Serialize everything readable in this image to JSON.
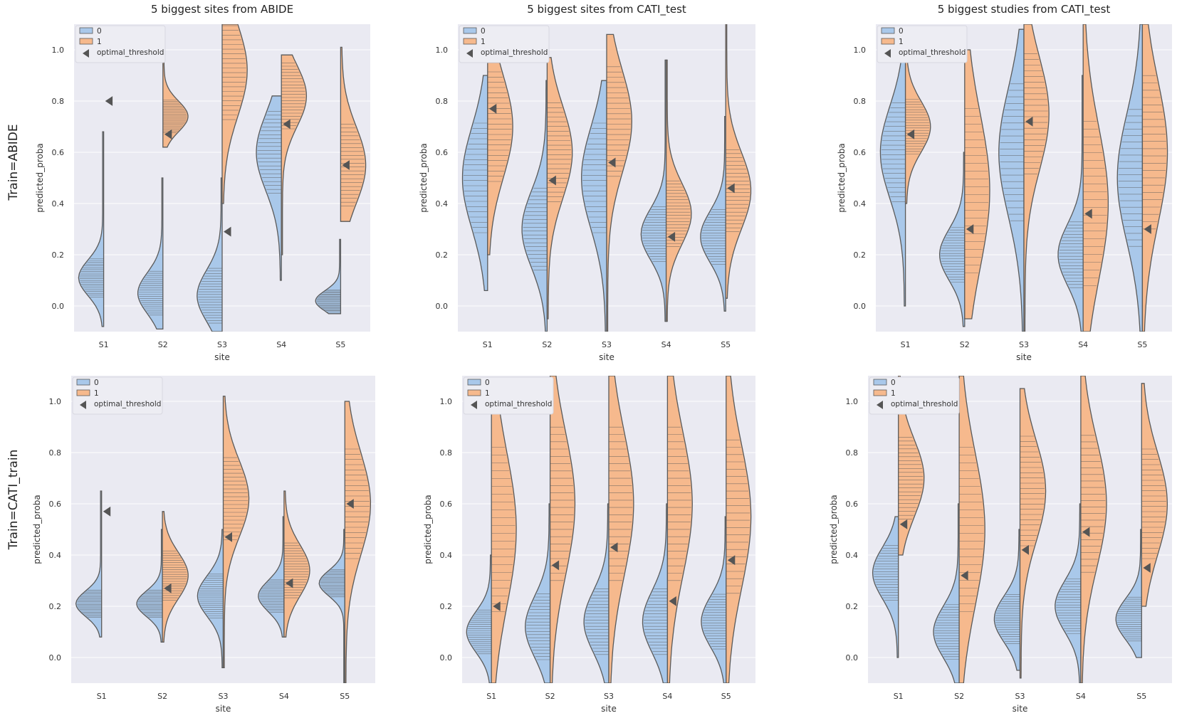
{
  "figure": {
    "row_labels": [
      "Train=ABIDE",
      "Train=CATI_train"
    ],
    "colors": {
      "class0": "#a9c8ea",
      "class1": "#f6b98d",
      "outline": "#5a5a5a",
      "panel_bg": "#eaeaf2",
      "threshold": "#555555"
    }
  },
  "chart_data": [
    {
      "type": "violin",
      "title": "5 biggest sites from ABIDE",
      "xlabel": "site",
      "ylabel": "predicted_proba",
      "categories": [
        "S1",
        "S2",
        "S3",
        "S4",
        "S5"
      ],
      "ylim": [
        -0.1,
        1.1
      ],
      "yticks": [
        "0.0",
        "0.2",
        "0.4",
        "0.6",
        "0.8",
        "1.0"
      ],
      "legend": {
        "placement": "top-left",
        "entries": [
          "0",
          "1",
          "optimal_threshold"
        ]
      },
      "series": [
        {
          "name": "0",
          "median": [
            0.11,
            0.05,
            0.04,
            0.6,
            0.02
          ],
          "range": [
            [
              -0.08,
              0.68
            ],
            [
              -0.09,
              0.5
            ],
            [
              -0.1,
              0.5
            ],
            [
              0.1,
              0.82
            ],
            [
              -0.03,
              0.26
            ]
          ],
          "spread": [
            0.07,
            0.08,
            0.1,
            0.15,
            0.04
          ]
        },
        {
          "name": "1",
          "median": [
            null,
            0.74,
            0.92,
            0.82,
            0.55
          ],
          "range": [
            null,
            [
              0.62,
              0.97
            ],
            [
              0.4,
              1.1
            ],
            [
              0.2,
              0.98
            ],
            [
              0.33,
              1.01
            ]
          ],
          "spread": [
            null,
            0.06,
            0.18,
            0.12,
            0.15
          ]
        }
      ],
      "optimal_threshold": [
        0.8,
        0.67,
        0.29,
        0.71,
        0.55
      ]
    },
    {
      "type": "violin",
      "title": "5 biggest sites from CATI_test",
      "xlabel": "site",
      "ylabel": "predicted_proba",
      "categories": [
        "S1",
        "S2",
        "S3",
        "S4",
        "S5"
      ],
      "ylim": [
        -0.1,
        1.1
      ],
      "yticks": [
        "0.0",
        "0.2",
        "0.4",
        "0.6",
        "0.8",
        "1.0"
      ],
      "legend": {
        "placement": "top-left",
        "entries": [
          "0",
          "1",
          "optimal_threshold"
        ]
      },
      "series": [
        {
          "name": "0",
          "median": [
            0.5,
            0.3,
            0.5,
            0.28,
            0.27
          ],
          "range": [
            [
              0.06,
              0.9
            ],
            [
              -0.1,
              0.88
            ],
            [
              -0.1,
              0.88
            ],
            [
              -0.06,
              0.96
            ],
            [
              -0.02,
              0.74
            ]
          ],
          "spread": [
            0.2,
            0.15,
            0.2,
            0.1,
            0.1
          ]
        },
        {
          "name": "1",
          "median": [
            0.7,
            0.6,
            0.72,
            0.36,
            0.45
          ],
          "range": [
            [
              0.2,
              0.95
            ],
            [
              -0.05,
              0.97
            ],
            [
              -0.1,
              1.06
            ],
            [
              -0.06,
              0.96
            ],
            [
              0.03,
              1.12
            ]
          ],
          "spread": [
            0.2,
            0.18,
            0.2,
            0.12,
            0.15
          ]
        }
      ],
      "optimal_threshold": [
        0.77,
        0.49,
        0.56,
        0.27,
        0.46
      ]
    },
    {
      "type": "violin",
      "title": "5 biggest studies from CATI_test",
      "xlabel": "site",
      "ylabel": "predicted_proba",
      "categories": [
        "S1",
        "S2",
        "S3",
        "S4",
        "S5"
      ],
      "ylim": [
        -0.1,
        1.1
      ],
      "yticks": [
        "0.0",
        "0.2",
        "0.4",
        "0.6",
        "0.8",
        "1.0"
      ],
      "legend": {
        "placement": "top-left",
        "entries": [
          "0",
          "1",
          "optimal_threshold"
        ]
      },
      "series": [
        {
          "name": "0",
          "median": [
            0.6,
            0.2,
            0.6,
            0.2,
            0.5
          ],
          "range": [
            [
              0.0,
              1.0
            ],
            [
              -0.08,
              0.6
            ],
            [
              -0.1,
              1.08
            ],
            [
              -0.1,
              0.9
            ],
            [
              -0.1,
              1.1
            ]
          ],
          "spread": [
            0.18,
            0.1,
            0.25,
            0.12,
            0.25
          ]
        },
        {
          "name": "1",
          "median": [
            0.7,
            0.45,
            0.75,
            0.4,
            0.6
          ],
          "range": [
            [
              0.4,
              1.05
            ],
            [
              -0.05,
              1.0
            ],
            [
              -0.1,
              1.1
            ],
            [
              -0.1,
              1.1
            ],
            [
              -0.1,
              1.1
            ]
          ],
          "spread": [
            0.1,
            0.3,
            0.22,
            0.3,
            0.28
          ]
        }
      ],
      "optimal_threshold": [
        0.67,
        0.3,
        0.72,
        0.36,
        0.3
      ]
    },
    {
      "type": "violin",
      "title": "",
      "xlabel": "site",
      "ylabel": "predicted_proba",
      "categories": [
        "S1",
        "S2",
        "S3",
        "S4",
        "S5"
      ],
      "ylim": [
        -0.1,
        1.1
      ],
      "yticks": [
        "0.0",
        "0.2",
        "0.4",
        "0.6",
        "0.8",
        "1.0"
      ],
      "legend": {
        "placement": "top-left",
        "entries": [
          "0",
          "1",
          "optimal_threshold"
        ]
      },
      "series": [
        {
          "name": "0",
          "median": [
            0.21,
            0.21,
            0.24,
            0.24,
            0.29
          ],
          "range": [
            [
              0.08,
              0.65
            ],
            [
              0.06,
              0.5
            ],
            [
              -0.04,
              0.5
            ],
            [
              0.08,
              0.55
            ],
            [
              -0.1,
              0.5
            ]
          ],
          "spread": [
            0.05,
            0.05,
            0.08,
            0.06,
            0.05
          ]
        },
        {
          "name": "1",
          "median": [
            null,
            0.32,
            0.62,
            0.34,
            0.6
          ],
          "range": [
            null,
            [
              0.06,
              0.57
            ],
            [
              -0.04,
              1.02
            ],
            [
              0.08,
              0.65
            ],
            [
              -0.1,
              1.0
            ]
          ],
          "spread": [
            null,
            0.09,
            0.15,
            0.1,
            0.2
          ]
        }
      ],
      "optimal_threshold": [
        0.57,
        0.27,
        0.47,
        0.29,
        0.6
      ]
    },
    {
      "type": "violin",
      "title": "",
      "xlabel": "site",
      "ylabel": "predicted_proba",
      "categories": [
        "S1",
        "S2",
        "S3",
        "S4",
        "S5"
      ],
      "ylim": [
        -0.1,
        1.1
      ],
      "yticks": [
        "0.0",
        "0.2",
        "0.4",
        "0.6",
        "0.8",
        "1.0"
      ],
      "legend": {
        "placement": "top-left",
        "entries": [
          "0",
          "1",
          "optimal_threshold"
        ]
      },
      "series": [
        {
          "name": "0",
          "median": [
            0.1,
            0.12,
            0.14,
            0.14,
            0.14
          ],
          "range": [
            [
              -0.1,
              0.4
            ],
            [
              -0.1,
              0.6
            ],
            [
              -0.1,
              0.6
            ],
            [
              -0.1,
              0.6
            ],
            [
              -0.1,
              0.55
            ]
          ],
          "spread": [
            0.08,
            0.12,
            0.12,
            0.12,
            0.1
          ]
        },
        {
          "name": "1",
          "median": [
            0.5,
            0.6,
            0.6,
            0.6,
            0.55
          ],
          "range": [
            [
              -0.1,
              0.98
            ],
            [
              -0.1,
              1.1
            ],
            [
              -0.1,
              1.1
            ],
            [
              -0.1,
              1.1
            ],
            [
              -0.1,
              1.1
            ]
          ],
          "spread": [
            0.3,
            0.28,
            0.28,
            0.28,
            0.28
          ]
        }
      ],
      "optimal_threshold": [
        0.2,
        0.36,
        0.43,
        0.22,
        0.38
      ]
    },
    {
      "type": "violin",
      "title": "",
      "xlabel": "site",
      "ylabel": "predicted_proba",
      "categories": [
        "S1",
        "S2",
        "S3",
        "S4",
        "S5"
      ],
      "ylim": [
        -0.1,
        1.1
      ],
      "yticks": [
        "0.0",
        "0.2",
        "0.4",
        "0.6",
        "0.8",
        "1.0"
      ],
      "legend": {
        "placement": "top-left",
        "entries": [
          "0",
          "1",
          "optimal_threshold"
        ]
      },
      "series": [
        {
          "name": "0",
          "median": [
            0.33,
            0.1,
            0.15,
            0.2,
            0.15
          ],
          "range": [
            [
              0.0,
              0.55
            ],
            [
              -0.1,
              0.6
            ],
            [
              -0.05,
              0.5
            ],
            [
              -0.1,
              0.6
            ],
            [
              0.0,
              0.5
            ]
          ],
          "spread": [
            0.1,
            0.1,
            0.09,
            0.1,
            0.08
          ]
        },
        {
          "name": "1",
          "median": [
            0.7,
            0.5,
            0.65,
            0.6,
            0.6
          ],
          "range": [
            [
              0.4,
              1.1
            ],
            [
              -0.1,
              1.1
            ],
            [
              -0.08,
              1.05
            ],
            [
              -0.1,
              1.1
            ],
            [
              0.2,
              1.07
            ]
          ],
          "spread": [
            0.15,
            0.3,
            0.2,
            0.25,
            0.2
          ]
        }
      ],
      "optimal_threshold": [
        0.52,
        0.32,
        0.42,
        0.49,
        0.35
      ]
    }
  ]
}
